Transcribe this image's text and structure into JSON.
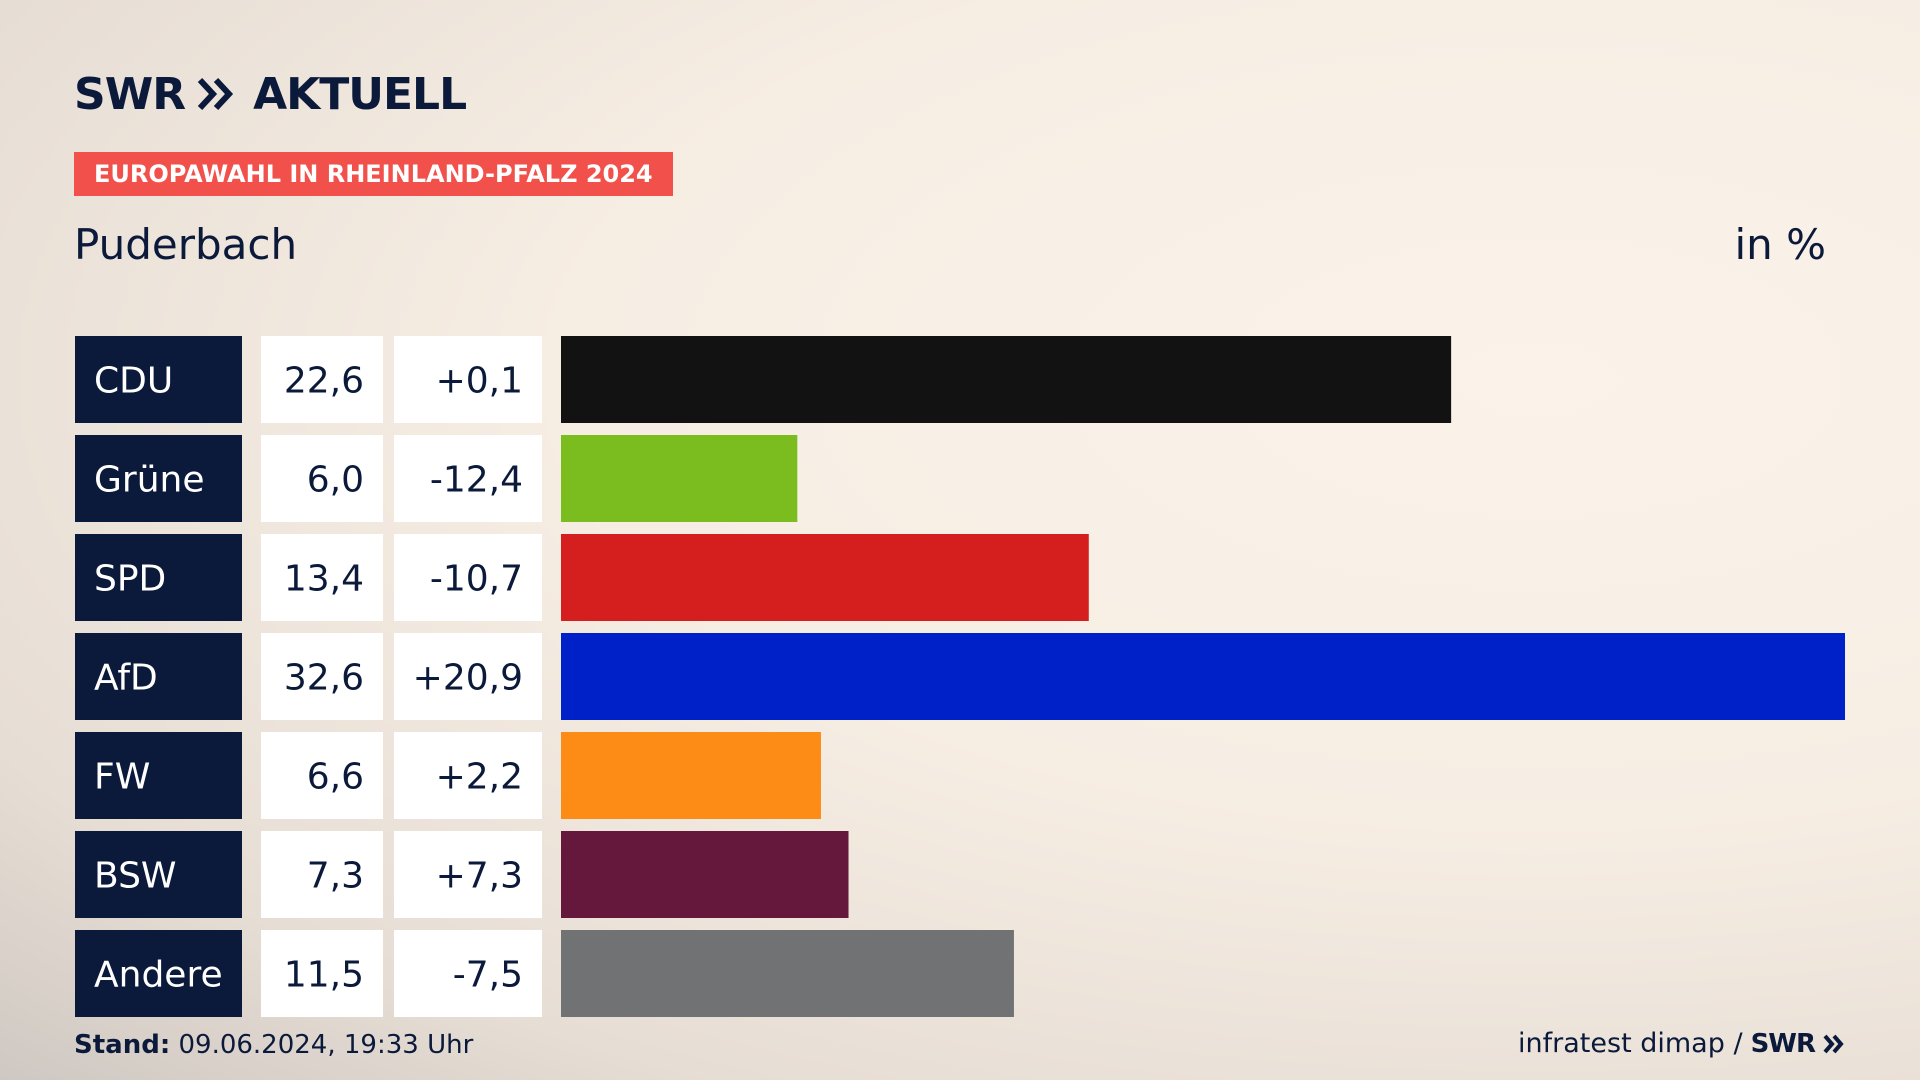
{
  "header": {
    "logo_swr": "SWR",
    "logo_aktuell": "AKTUELL",
    "banner": "EUROPAWAHL IN RHEINLAND-PFALZ 2024",
    "region": "Puderbach",
    "unit": "in %"
  },
  "footer": {
    "stand_label": "Stand:",
    "stand_value": "09.06.2024, 19:33 Uhr",
    "source": "infratest dimap /",
    "source_logo": "SWR"
  },
  "colors": {
    "party_label_bg": "#0b1a3a",
    "value_cell_bg": "#ffffff",
    "banner": "#f1514a"
  },
  "chart_data": {
    "type": "bar",
    "orientation": "horizontal",
    "categories": [
      "CDU",
      "Grüne",
      "SPD",
      "AfD",
      "FW",
      "BSW",
      "Andere"
    ],
    "values": [
      22.6,
      6.0,
      13.4,
      32.6,
      6.6,
      7.3,
      11.5
    ],
    "value_labels": [
      "22,6",
      "6,0",
      "13,4",
      "32,6",
      "6,6",
      "7,3",
      "11,5"
    ],
    "changes": [
      0.1,
      -12.4,
      -10.7,
      20.9,
      2.2,
      7.3,
      -7.5
    ],
    "change_labels": [
      "+0,1",
      "-12,4",
      "-10,7",
      "+20,9",
      "+2,2",
      "+7,3",
      "-7,5"
    ],
    "colors": [
      "#121212",
      "#7bbd1f",
      "#d51f1f",
      "#0021c7",
      "#fd8c16",
      "#66183c",
      "#717273"
    ],
    "xlim": [
      0,
      32.6
    ],
    "grid": false,
    "legend": "none"
  }
}
